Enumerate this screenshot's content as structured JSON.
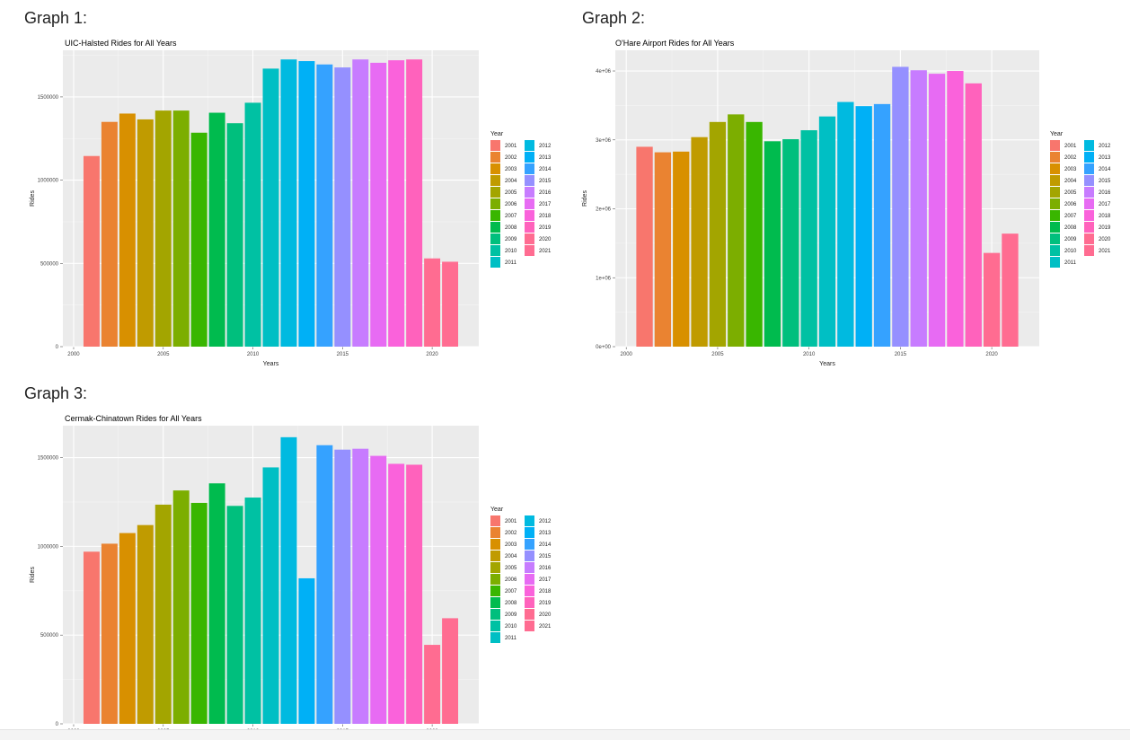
{
  "headings": [
    "Graph 1:",
    "Graph 2:",
    "Graph 3:"
  ],
  "colors": [
    "#F8766D",
    "#EA8331",
    "#D89000",
    "#C09B00",
    "#A3A500",
    "#7CAE00",
    "#39B600",
    "#00BB4E",
    "#00BF7D",
    "#00C1A3",
    "#00BFC4",
    "#00BAE0",
    "#00B0F6",
    "#35A2FF",
    "#9590FF",
    "#C77CFF",
    "#E76BF3",
    "#FA62DB",
    "#FF62BC",
    "#FF6C91",
    "#FF6C91"
  ],
  "chart_data": [
    {
      "type": "bar",
      "title": "UIC-Halsted Rides for All Years",
      "xlabel": "Years",
      "ylabel": "Rides",
      "x": [
        2001,
        2002,
        2003,
        2004,
        2005,
        2006,
        2007,
        2008,
        2009,
        2010,
        2011,
        2012,
        2013,
        2014,
        2015,
        2016,
        2017,
        2018,
        2019,
        2020,
        2021
      ],
      "values": [
        1145000,
        1350000,
        1400000,
        1365000,
        1418000,
        1418000,
        1285000,
        1405000,
        1342000,
        1465000,
        1670000,
        1725000,
        1715000,
        1695000,
        1677000,
        1725000,
        1705000,
        1720000,
        1725000,
        530000,
        510000
      ],
      "ylim": [
        0,
        1780000
      ],
      "yticks": [
        0,
        500000,
        1000000,
        1500000
      ],
      "ytick_labels": [
        "0",
        "500000",
        "1000000",
        "1500000"
      ],
      "xticks": [
        2000,
        2005,
        2010,
        2015,
        2020
      ],
      "xtick_labels": [
        "2000",
        "2005",
        "2010",
        "2015",
        "2020"
      ],
      "legend": {
        "title": "Year",
        "labels": [
          "2001",
          "2002",
          "2003",
          "2004",
          "2005",
          "2006",
          "2007",
          "2008",
          "2009",
          "2010",
          "2011",
          "2012",
          "2013",
          "2014",
          "2015",
          "2016",
          "2017",
          "2018",
          "2019",
          "2020",
          "2021"
        ],
        "position": "right"
      },
      "grid": true
    },
    {
      "type": "bar",
      "title": "O'Hare Airport Rides for All Years",
      "xlabel": "Years",
      "ylabel": "Rides",
      "x": [
        2001,
        2002,
        2003,
        2004,
        2005,
        2006,
        2007,
        2008,
        2009,
        2010,
        2011,
        2012,
        2013,
        2014,
        2015,
        2016,
        2017,
        2018,
        2019,
        2020,
        2021
      ],
      "values": [
        2900000,
        2820000,
        2830000,
        3040000,
        3260000,
        3370000,
        3260000,
        2980000,
        3010000,
        3140000,
        3340000,
        3550000,
        3490000,
        3520000,
        4060000,
        4010000,
        3960000,
        4000000,
        3820000,
        1360000,
        1640000
      ],
      "ylim": [
        0,
        4300000
      ],
      "yticks": [
        0,
        1000000,
        2000000,
        3000000,
        4000000
      ],
      "ytick_labels": [
        "0e+00",
        "1e+06",
        "2e+06",
        "3e+06",
        "4e+06"
      ],
      "xticks": [
        2000,
        2005,
        2010,
        2015,
        2020
      ],
      "xtick_labels": [
        "2000",
        "2005",
        "2010",
        "2015",
        "2020"
      ],
      "legend": {
        "title": "Year",
        "labels": [
          "2001",
          "2002",
          "2003",
          "2004",
          "2005",
          "2006",
          "2007",
          "2008",
          "2009",
          "2010",
          "2011",
          "2012",
          "2013",
          "2014",
          "2015",
          "2016",
          "2017",
          "2018",
          "2019",
          "2020",
          "2021"
        ],
        "position": "right"
      },
      "grid": true
    },
    {
      "type": "bar",
      "title": "Cermak-Chinatown Rides for All Years",
      "xlabel": "",
      "ylabel": "Rides",
      "x": [
        2001,
        2002,
        2003,
        2004,
        2005,
        2006,
        2007,
        2008,
        2009,
        2010,
        2011,
        2012,
        2013,
        2014,
        2015,
        2016,
        2017,
        2018,
        2019,
        2020,
        2021
      ],
      "values": [
        970000,
        1015000,
        1075000,
        1120000,
        1235000,
        1315000,
        1245000,
        1355000,
        1228000,
        1275000,
        1445000,
        1615000,
        820000,
        1570000,
        1545000,
        1550000,
        1510000,
        1465000,
        1460000,
        445000,
        595000
      ],
      "ylim": [
        0,
        1680000
      ],
      "yticks": [
        0,
        500000,
        1000000,
        1500000
      ],
      "ytick_labels": [
        "0",
        "500000",
        "1000000",
        "1500000"
      ],
      "xticks": [
        2000,
        2005,
        2010,
        2015,
        2020
      ],
      "xtick_labels": [
        "2000",
        "2005",
        "2010",
        "2015",
        "2020"
      ],
      "legend": {
        "title": "Year",
        "labels": [
          "2001",
          "2002",
          "2003",
          "2004",
          "2005",
          "2006",
          "2007",
          "2008",
          "2009",
          "2010",
          "2011",
          "2012",
          "2013",
          "2014",
          "2015",
          "2016",
          "2017",
          "2018",
          "2019",
          "2020",
          "2021"
        ],
        "position": "right"
      },
      "grid": true
    }
  ]
}
